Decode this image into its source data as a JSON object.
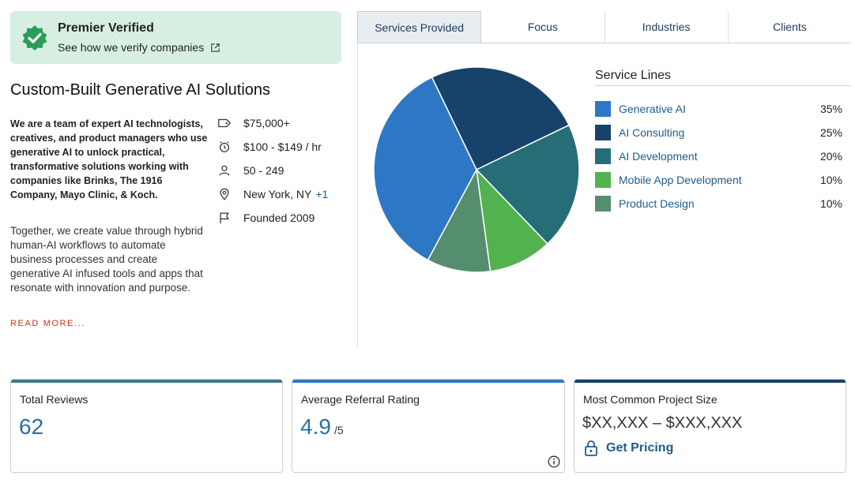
{
  "verified": {
    "title": "Premier Verified",
    "link": "See how we verify companies",
    "badge_icon": "verified-badge-icon",
    "link_icon": "external-link-icon",
    "badge_color": "#2a9d5b"
  },
  "headline": "Custom-Built Generative AI Solutions",
  "description_bold": "We are a team of expert AI technologists, creatives, and product managers who use generative AI to unlock practical, transformative solutions working with companies like Brinks, The 1916 Company, Mayo Clinic, & Koch.",
  "description": "Together, we create value through hybrid human-AI workflows to automate business processes and create generative AI infused tools and apps that resonate with innovation and purpose.",
  "read_more": "READ MORE...",
  "facts": {
    "min_project": {
      "icon": "price-tag-icon",
      "text": "$75,000+"
    },
    "hourly_rate": {
      "icon": "clock-icon",
      "text": "$100 - $149 / hr"
    },
    "employees": {
      "icon": "user-icon",
      "text": "50 - 249"
    },
    "location": {
      "icon": "location-pin-icon",
      "text": "New York, NY",
      "more": "+1"
    },
    "founded": {
      "icon": "flag-icon",
      "text": "Founded 2009"
    }
  },
  "tabs": [
    "Services Provided",
    "Focus",
    "Industries",
    "Clients"
  ],
  "active_tab": 0,
  "legend_title": "Service Lines",
  "chart_data": {
    "type": "pie",
    "title": "Service Lines",
    "categories": [
      "Generative AI",
      "AI Consulting",
      "AI Development",
      "Mobile App Development",
      "Product Design"
    ],
    "values": [
      35,
      25,
      20,
      10,
      10
    ],
    "labels": [
      "35%",
      "25%",
      "20%",
      "10%",
      "10%"
    ],
    "colors": [
      "#2e77c4",
      "#17436b",
      "#256e78",
      "#52b24f",
      "#548e6e"
    ],
    "legend_placement": "right"
  },
  "stats": {
    "total_reviews": {
      "label": "Total Reviews",
      "value": "62",
      "bar_color": "#3d7a8c"
    },
    "referral_rating": {
      "label": "Average Referral Rating",
      "value": "4.9",
      "unit": "/5",
      "bar_color": "#2e77c4",
      "info_icon": "info-icon"
    },
    "project_size": {
      "label": "Most Common Project Size",
      "value": "$XX,XXX – $XXX,XXX",
      "cta": "Get Pricing",
      "cta_icon": "lock-icon",
      "bar_color": "#17436b"
    }
  }
}
